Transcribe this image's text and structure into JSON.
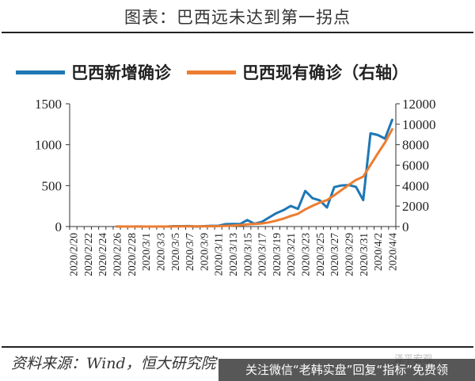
{
  "header": {
    "title": "图表：巴西远未达到第一拐点"
  },
  "footer": {
    "source": "资料来源：Wind，恒大研究院",
    "watermark": "泽平宏观",
    "banner": "关注微信“老韩实盘”回复“指标”免费领"
  },
  "colors": {
    "new_cases": "#1f77b4",
    "active_cases": "#ed7d31"
  },
  "chart_data": {
    "type": "line",
    "title": "",
    "xlabel": "",
    "ylabel": "",
    "legend_position": "top-left",
    "grid": false,
    "ylim": [
      0,
      1500
    ],
    "y2lim": [
      0,
      12000
    ],
    "yticks": [
      "0",
      "500",
      "1000",
      "1500"
    ],
    "y2ticks": [
      "0",
      "2000",
      "4000",
      "6000",
      "8000",
      "10000",
      "12000"
    ],
    "x": [
      "2020/2/20",
      "2020/2/21",
      "2020/2/22",
      "2020/2/23",
      "2020/2/24",
      "2020/2/25",
      "2020/2/26",
      "2020/2/27",
      "2020/2/28",
      "2020/2/29",
      "2020/3/1",
      "2020/3/2",
      "2020/3/3",
      "2020/3/4",
      "2020/3/5",
      "2020/3/6",
      "2020/3/7",
      "2020/3/8",
      "2020/3/9",
      "2020/3/10",
      "2020/3/11",
      "2020/3/12",
      "2020/3/13",
      "2020/3/14",
      "2020/3/15",
      "2020/3/16",
      "2020/3/17",
      "2020/3/18",
      "2020/3/19",
      "2020/3/20",
      "2020/3/21",
      "2020/3/22",
      "2020/3/23",
      "2020/3/24",
      "2020/3/25",
      "2020/3/26",
      "2020/3/27",
      "2020/3/28",
      "2020/3/29",
      "2020/3/30",
      "2020/3/31",
      "2020/4/1",
      "2020/4/2",
      "2020/4/3",
      "2020/4/4"
    ],
    "xticks": [
      "2020/2/20",
      "2020/2/22",
      "2020/2/24",
      "2020/2/26",
      "2020/2/28",
      "2020/3/1",
      "2020/3/3",
      "2020/3/5",
      "2020/3/7",
      "2020/3/9",
      "2020/3/11",
      "2020/3/13",
      "2020/3/15",
      "2020/3/17",
      "2020/3/19",
      "2020/3/21",
      "2020/3/23",
      "2020/3/25",
      "2020/3/27",
      "2020/3/29",
      "2020/3/31",
      "2020/4/2",
      "2020/4/4"
    ],
    "series": [
      {
        "name": "巴西新增确诊",
        "axis": "left",
        "values": [
          null,
          null,
          null,
          null,
          null,
          null,
          1,
          0,
          0,
          1,
          0,
          0,
          0,
          1,
          5,
          5,
          6,
          0,
          5,
          9,
          9,
          29,
          31,
          30,
          79,
          34,
          57,
          110,
          163,
          200,
          252,
          216,
          435,
          346,
          320,
          232,
          482,
          502,
          507,
          485,
          323,
          1138,
          1119,
          1074,
          1304
        ]
      },
      {
        "name": "巴西现有确诊（右轴）",
        "axis": "right",
        "values": [
          null,
          null,
          null,
          null,
          null,
          null,
          1,
          1,
          1,
          2,
          2,
          2,
          2,
          3,
          8,
          13,
          19,
          19,
          24,
          33,
          42,
          71,
          102,
          132,
          211,
          245,
          302,
          412,
          575,
          775,
          1027,
          1243,
          1678,
          2024,
          2344,
          2576,
          3058,
          3560,
          4067,
          4552,
          4875,
          6013,
          7132,
          8206,
          9510
        ]
      }
    ]
  }
}
